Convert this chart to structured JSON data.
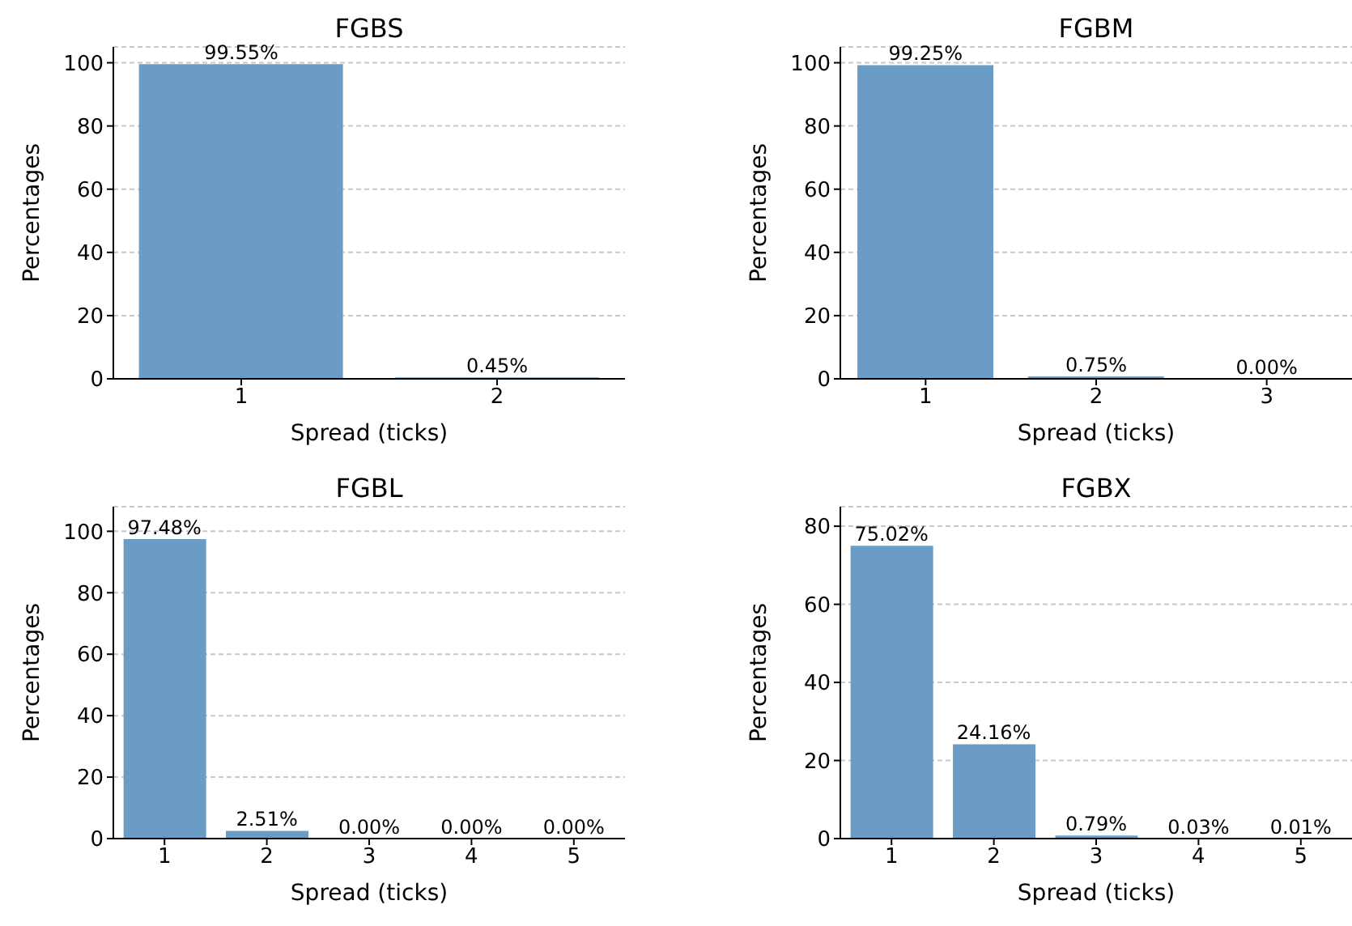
{
  "chart_data": [
    {
      "type": "bar",
      "title": "FGBS",
      "xlabel": "Spread (ticks)",
      "ylabel": "Percentages",
      "categories": [
        "1",
        "2"
      ],
      "values": [
        99.55,
        0.45
      ],
      "value_labels": [
        "99.55%",
        "0.45%"
      ],
      "color": "#6a9cc6",
      "ylim": [
        0,
        105
      ],
      "yticks": [
        0,
        20,
        40,
        60,
        80,
        100
      ],
      "grid": "y",
      "legend": false
    },
    {
      "type": "bar",
      "title": "FGBM",
      "xlabel": "Spread (ticks)",
      "ylabel": "Percentages",
      "categories": [
        "1",
        "2",
        "3"
      ],
      "values": [
        99.25,
        0.75,
        0.0
      ],
      "value_labels": [
        "99.25%",
        "0.75%",
        "0.00%"
      ],
      "color": "#6a9cc6",
      "ylim": [
        0,
        105
      ],
      "yticks": [
        0,
        20,
        40,
        60,
        80,
        100
      ],
      "grid": "y",
      "legend": false
    },
    {
      "type": "bar",
      "title": "FGBL",
      "xlabel": "Spread (ticks)",
      "ylabel": "Percentages",
      "categories": [
        "1",
        "2",
        "3",
        "4",
        "5"
      ],
      "values": [
        97.48,
        2.51,
        0.0,
        0.0,
        0.0
      ],
      "value_labels": [
        "97.48%",
        "2.51%",
        "0.00%",
        "0.00%",
        "0.00%"
      ],
      "color": "#6a9cc6",
      "ylim": [
        0,
        108
      ],
      "yticks": [
        0,
        20,
        40,
        60,
        80,
        100
      ],
      "grid": "y",
      "legend": false
    },
    {
      "type": "bar",
      "title": "FGBX",
      "xlabel": "Spread (ticks)",
      "ylabel": "Percentages",
      "categories": [
        "1",
        "2",
        "3",
        "4",
        "5"
      ],
      "values": [
        75.02,
        24.16,
        0.79,
        0.03,
        0.01
      ],
      "value_labels": [
        "75.02%",
        "24.16%",
        "0.79%",
        "0.03%",
        "0.01%"
      ],
      "color": "#6a9cc6",
      "ylim": [
        0,
        85
      ],
      "yticks": [
        0,
        20,
        40,
        60,
        80
      ],
      "grid": "y",
      "legend": false
    }
  ]
}
